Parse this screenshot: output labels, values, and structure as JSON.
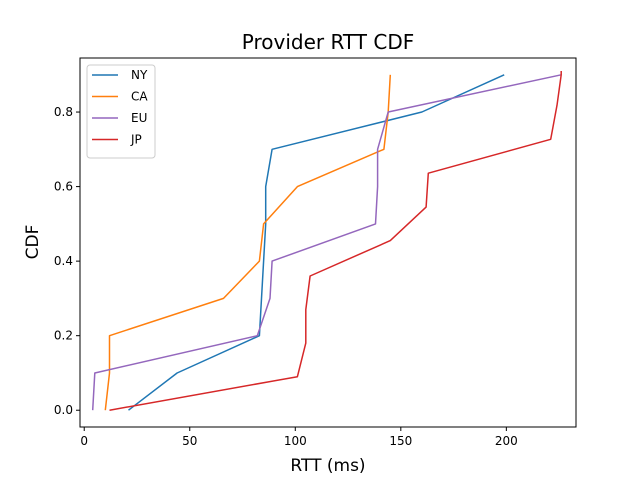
{
  "chart_data": {
    "type": "line",
    "title": "Provider RTT CDF",
    "xlabel": "RTT (ms)",
    "ylabel": "CDF",
    "xlim": [
      -2,
      233
    ],
    "ylim": [
      -0.045,
      0.945
    ],
    "xticks": [
      0,
      50,
      100,
      150,
      200
    ],
    "yticks": [
      0.0,
      0.2,
      0.4,
      0.6,
      0.8
    ],
    "ytick_labels": [
      "0.0",
      "0.2",
      "0.4",
      "0.6",
      "0.8"
    ],
    "grid": false,
    "legend_position": "top-left",
    "series": [
      {
        "name": "NY",
        "color": "#1f77b4",
        "x": [
          21,
          44,
          83,
          84,
          86,
          86,
          89,
          160,
          199
        ],
        "y": [
          0.0,
          0.1,
          0.2,
          0.3,
          0.5,
          0.6,
          0.7,
          0.8,
          0.9
        ]
      },
      {
        "name": "CA",
        "color": "#ff7f0e",
        "x": [
          10,
          12,
          12,
          66,
          83,
          85,
          101,
          142,
          144,
          145
        ],
        "y": [
          0.0,
          0.1,
          0.2,
          0.3,
          0.4,
          0.5,
          0.6,
          0.7,
          0.8,
          0.9
        ]
      },
      {
        "name": "EU",
        "color": "#9467bd",
        "x": [
          4,
          5,
          82,
          88,
          89,
          138,
          139,
          139,
          144,
          226
        ],
        "y": [
          0.0,
          0.1,
          0.2,
          0.3,
          0.4,
          0.5,
          0.6,
          0.7,
          0.8,
          0.9
        ]
      },
      {
        "name": "JP",
        "color": "#d62728",
        "x": [
          12,
          101,
          105,
          105,
          107,
          145,
          162,
          163,
          221,
          224,
          226,
          226
        ],
        "y": [
          0.0,
          0.09,
          0.18,
          0.27,
          0.36,
          0.455,
          0.545,
          0.636,
          0.727,
          0.818,
          0.9,
          0.91
        ]
      }
    ]
  }
}
